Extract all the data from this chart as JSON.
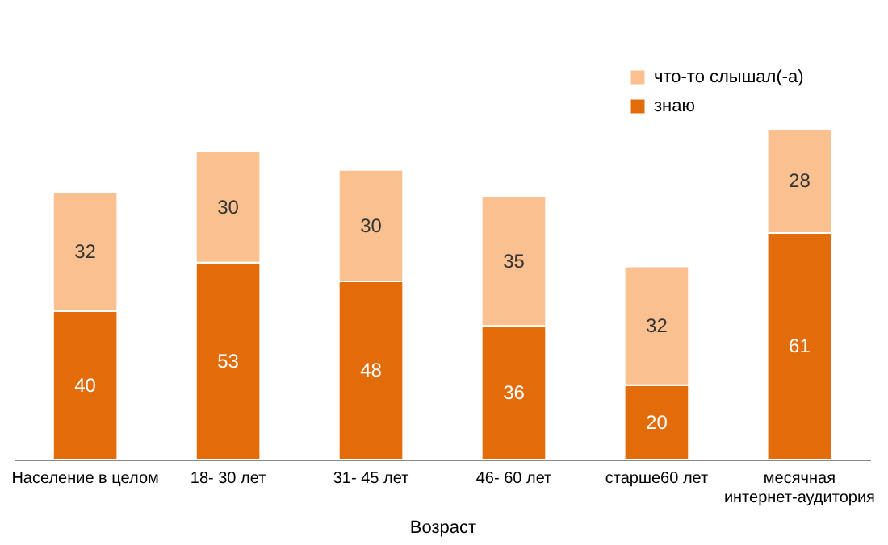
{
  "chart_data": {
    "type": "bar",
    "stacked": true,
    "data_labels": true,
    "legend": "top right",
    "xlabel": "Возраст",
    "categories": [
      "Население  в целом",
      "18- 30 лет",
      "31- 45 лет",
      "46- 60 лет",
      "старше60 лет",
      "месячная интернет-аудитория"
    ],
    "series": [
      {
        "name": "знаю",
        "color": "#e36c0a",
        "values": [
          40,
          53,
          48,
          36,
          20,
          61
        ]
      },
      {
        "name": "что-то слышал(-а)",
        "color": "#fac090",
        "values": [
          32,
          30,
          30,
          35,
          32,
          28
        ]
      }
    ]
  }
}
